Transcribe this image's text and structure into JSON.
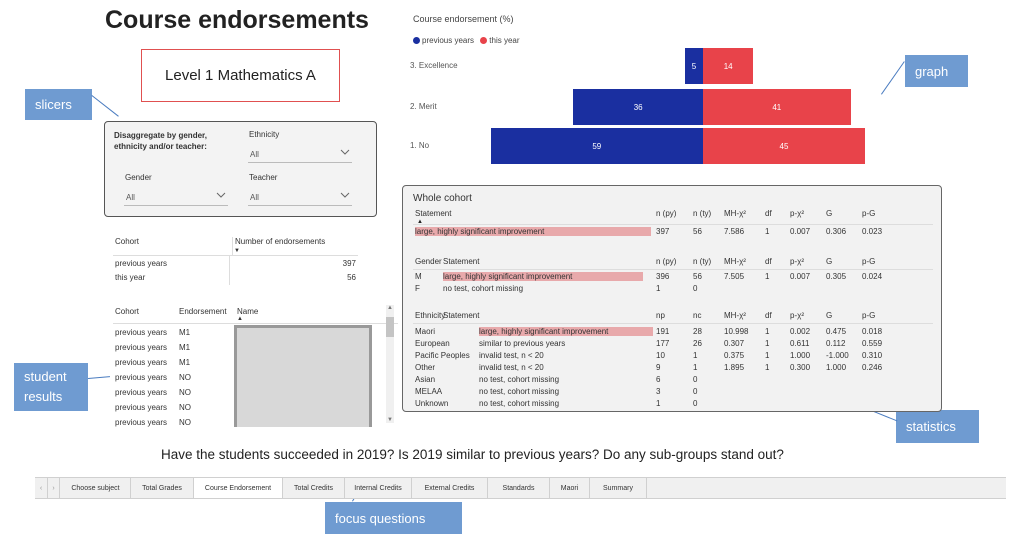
{
  "page_title": "Course endorsements",
  "subject": "Level 1 Mathematics A",
  "callouts": {
    "slicers": "slicers",
    "graph": "graph",
    "student_results": "student results",
    "statistics": "statistics",
    "focus_questions": "focus questions"
  },
  "slicers": {
    "heading": "Disaggregate by gender, ethnicity and/or teacher:",
    "ethnicity_label": "Ethnicity",
    "ethnicity_value": "All",
    "gender_label": "Gender",
    "gender_value": "All",
    "teacher_label": "Teacher",
    "teacher_value": "All"
  },
  "cohort_table": {
    "headers": [
      "Cohort",
      "Number of endorsements"
    ],
    "rows": [
      {
        "cohort": "previous years",
        "value": "397"
      },
      {
        "cohort": "this year",
        "value": "56"
      }
    ]
  },
  "student_table": {
    "headers": [
      "Cohort",
      "Endorsement",
      "Name"
    ],
    "rows": [
      {
        "cohort": "previous years",
        "endorsement": "M1"
      },
      {
        "cohort": "previous years",
        "endorsement": "M1"
      },
      {
        "cohort": "previous years",
        "endorsement": "M1"
      },
      {
        "cohort": "previous years",
        "endorsement": "NO"
      },
      {
        "cohort": "previous years",
        "endorsement": "NO"
      },
      {
        "cohort": "previous years",
        "endorsement": "NO"
      },
      {
        "cohort": "previous years",
        "endorsement": "NO"
      }
    ]
  },
  "chart_data": {
    "type": "bar",
    "title": "Course endorsement (%)",
    "orientation": "horizontal-diverging",
    "categories": [
      "3. Excellence",
      "2. Merit",
      "1. No"
    ],
    "series": [
      {
        "name": "previous years",
        "color": "#1a2fa0",
        "values": [
          5,
          36,
          59
        ]
      },
      {
        "name": "this year",
        "color": "#e8434a",
        "values": [
          14,
          41,
          45
        ]
      }
    ],
    "legend_position": "top-left"
  },
  "stats": {
    "title": "Whole cohort",
    "whole_headers": [
      "Statement",
      "n (py)",
      "n (ty)",
      "MH-χ²",
      "df",
      "p-χ²",
      "G",
      "p-G"
    ],
    "whole_row": [
      "large, highly significant improvement",
      "397",
      "56",
      "7.586",
      "1",
      "0.007",
      "0.306",
      "0.023"
    ],
    "gender_headers": [
      "Gender",
      "Statement",
      "n (py)",
      "n (ty)",
      "MH-χ²",
      "df",
      "p-χ²",
      "G",
      "p-G"
    ],
    "gender_rows": [
      [
        "M",
        "large, highly significant improvement",
        "396",
        "56",
        "7.505",
        "1",
        "0.007",
        "0.305",
        "0.024"
      ],
      [
        "F",
        "no test, cohort missing",
        "1",
        "0",
        "",
        "",
        "",
        "",
        ""
      ]
    ],
    "eth_headers": [
      "Ethnicity",
      "Statement",
      "np",
      "nc",
      "MH-χ²",
      "df",
      "p-χ²",
      "G",
      "p-G"
    ],
    "eth_rows": [
      [
        "Maori",
        "large, highly significant improvement",
        "191",
        "28",
        "10.998",
        "1",
        "0.002",
        "0.475",
        "0.018"
      ],
      [
        "European",
        "similar to previous years",
        "177",
        "26",
        "0.307",
        "1",
        "0.611",
        "0.112",
        "0.559"
      ],
      [
        "Pacific Peoples",
        "invalid test, n < 20",
        "10",
        "1",
        "0.375",
        "1",
        "1.000",
        "-1.000",
        "0.310"
      ],
      [
        "Other",
        "invalid test, n < 20",
        "9",
        "1",
        "1.895",
        "1",
        "0.300",
        "1.000",
        "0.246"
      ],
      [
        "Asian",
        "no test, cohort missing",
        "6",
        "0",
        "",
        "",
        "",
        "",
        ""
      ],
      [
        "MELAA",
        "no test, cohort missing",
        "3",
        "0",
        "",
        "",
        "",
        "",
        ""
      ],
      [
        "Unknown",
        "no test, cohort missing",
        "1",
        "0",
        "",
        "",
        "",
        "",
        ""
      ]
    ]
  },
  "focus_question": "Have the students succeeded in 2019? Is 2019 similar to previous years?  Do any sub-groups stand out?",
  "tabs": [
    "Choose subject",
    "Total Grades",
    "Course Endorsement",
    "Total Credits",
    "Internal Credits",
    "External Credits",
    "Standards",
    "Maori",
    "Summary"
  ],
  "active_tab": "Course Endorsement"
}
